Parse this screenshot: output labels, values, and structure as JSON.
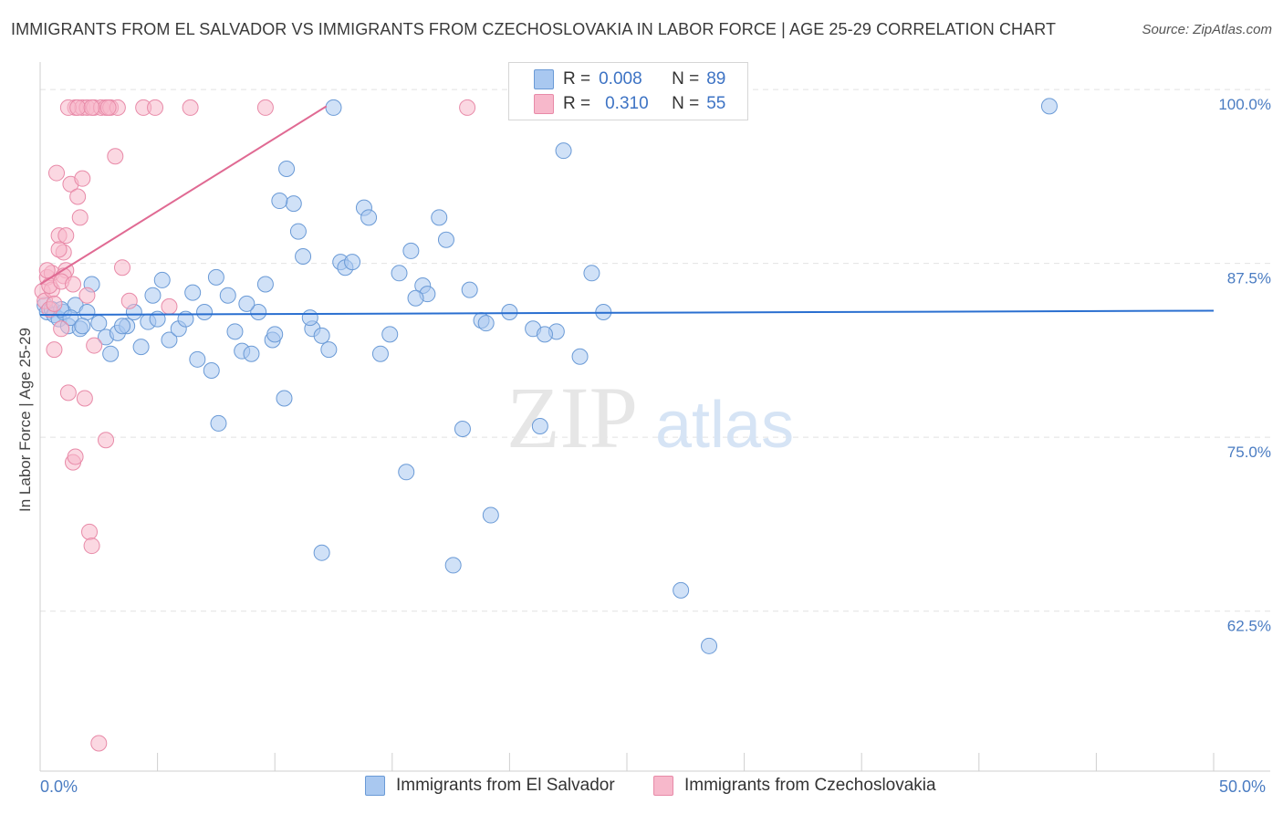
{
  "title": "IMMIGRANTS FROM EL SALVADOR VS IMMIGRANTS FROM CZECHOSLOVAKIA IN LABOR FORCE | AGE 25-29 CORRELATION CHART",
  "source": "Source: ZipAtlas.com",
  "watermark": {
    "zip": "ZIP",
    "atlas": "atlas"
  },
  "colors": {
    "blue_fill": "#a9c8f0",
    "blue_stroke": "#6a9ad6",
    "blue_line": "#2a6fd0",
    "pink_fill": "#f7b8cb",
    "pink_stroke": "#e88aa8",
    "pink_line": "#e06a93",
    "grid": "#e2e2e2",
    "axis_text": "#4a7cc2"
  },
  "legend": {
    "r_label": "R =",
    "n_label": "N =",
    "blue": {
      "r": "0.008",
      "n": "89"
    },
    "pink": {
      "r": "0.310",
      "n": "55"
    }
  },
  "bottom_legend": {
    "blue": "Immigrants from El Salvador",
    "pink": "Immigrants from Czechoslovakia"
  },
  "x_labels": {
    "min": "0.0%",
    "max": "50.0%"
  },
  "chart_data": {
    "type": "scatter",
    "title": "IMMIGRANTS FROM EL SALVADOR VS IMMIGRANTS FROM CZECHOSLOVAKIA IN LABOR FORCE | AGE 25-29 CORRELATION CHART",
    "xlabel": "",
    "ylabel": "In Labor Force | Age 25-29",
    "xlim": [
      0,
      50
    ],
    "ylim": [
      51,
      102.5
    ],
    "y_ticks": [
      {
        "value": 62.5,
        "label": "62.5%"
      },
      {
        "value": 75.0,
        "label": "75.0%"
      },
      {
        "value": 87.5,
        "label": "87.5%"
      },
      {
        "value": 100.0,
        "label": "100.0%"
      }
    ],
    "x_ticks": [
      0,
      5,
      10,
      15,
      20,
      25,
      30,
      35,
      40,
      45,
      50
    ],
    "series": [
      {
        "name": "Immigrants from El Salvador",
        "color": "blue",
        "r": 0.008,
        "n": 89,
        "trend": {
          "x": [
            0,
            50
          ],
          "y": [
            83.8,
            84.1
          ]
        },
        "points": [
          [
            0.2,
            84.5
          ],
          [
            0.3,
            84.0
          ],
          [
            0.5,
            84.2
          ],
          [
            0.6,
            83.8
          ],
          [
            0.8,
            83.5
          ],
          [
            1.0,
            84.0
          ],
          [
            1.2,
            83.0
          ],
          [
            1.5,
            84.5
          ],
          [
            1.7,
            82.8
          ],
          [
            2.0,
            84.0
          ],
          [
            2.5,
            83.2
          ],
          [
            2.8,
            82.2
          ],
          [
            3.0,
            81.0
          ],
          [
            3.3,
            82.5
          ],
          [
            3.7,
            83.0
          ],
          [
            4.0,
            84.0
          ],
          [
            4.3,
            81.5
          ],
          [
            4.6,
            83.3
          ],
          [
            5.0,
            83.5
          ],
          [
            5.5,
            82.0
          ],
          [
            5.9,
            82.8
          ],
          [
            6.2,
            83.5
          ],
          [
            6.7,
            80.6
          ],
          [
            7.0,
            84.0
          ],
          [
            7.3,
            79.8
          ],
          [
            7.6,
            76.0
          ],
          [
            8.0,
            85.2
          ],
          [
            8.3,
            82.6
          ],
          [
            8.6,
            81.2
          ],
          [
            9.0,
            81.0
          ],
          [
            9.3,
            84.0
          ],
          [
            9.6,
            86.0
          ],
          [
            9.9,
            82.0
          ],
          [
            10.4,
            77.8
          ],
          [
            10.5,
            94.3
          ],
          [
            10.8,
            91.8
          ],
          [
            11.0,
            89.8
          ],
          [
            11.2,
            88.0
          ],
          [
            11.6,
            82.8
          ],
          [
            12.0,
            82.3
          ],
          [
            12.3,
            81.3
          ],
          [
            12.8,
            87.6
          ],
          [
            13.0,
            87.2
          ],
          [
            13.3,
            87.6
          ],
          [
            13.8,
            91.5
          ],
          [
            14.0,
            90.8
          ],
          [
            14.5,
            81.0
          ],
          [
            14.9,
            82.4
          ],
          [
            15.3,
            86.8
          ],
          [
            15.6,
            72.5
          ],
          [
            15.8,
            88.4
          ],
          [
            16.3,
            85.9
          ],
          [
            16.5,
            85.3
          ],
          [
            17.0,
            90.8
          ],
          [
            17.3,
            89.2
          ],
          [
            17.6,
            65.8
          ],
          [
            18.0,
            75.6
          ],
          [
            18.3,
            85.6
          ],
          [
            18.8,
            83.4
          ],
          [
            19.2,
            69.4
          ],
          [
            19.0,
            83.2
          ],
          [
            21.0,
            82.8
          ],
          [
            21.3,
            75.8
          ],
          [
            22.0,
            82.6
          ],
          [
            22.3,
            95.6
          ],
          [
            23.0,
            80.8
          ],
          [
            23.5,
            86.8
          ],
          [
            24.0,
            84.0
          ],
          [
            27.3,
            64.0
          ],
          [
            28.5,
            60.0
          ],
          [
            12.0,
            66.7
          ],
          [
            0.9,
            84.2
          ],
          [
            1.3,
            83.6
          ],
          [
            1.8,
            83.0
          ],
          [
            2.2,
            86.0
          ],
          [
            3.5,
            83.0
          ],
          [
            4.8,
            85.2
          ],
          [
            5.2,
            86.3
          ],
          [
            6.5,
            85.4
          ],
          [
            7.5,
            86.5
          ],
          [
            8.8,
            84.6
          ],
          [
            10.2,
            92.0
          ],
          [
            10.0,
            82.4
          ],
          [
            11.5,
            83.6
          ],
          [
            12.5,
            98.7
          ],
          [
            16.0,
            85.0
          ],
          [
            20.0,
            84.0
          ],
          [
            21.5,
            82.4
          ],
          [
            43.0,
            98.8
          ]
        ]
      },
      {
        "name": "Immigrants from Czechoslovakia",
        "color": "pink",
        "r": 0.31,
        "n": 55,
        "trend": {
          "x": [
            0,
            12.2
          ],
          "y": [
            86.0,
            98.8
          ]
        },
        "points": [
          [
            0.1,
            85.5
          ],
          [
            0.2,
            84.8
          ],
          [
            0.3,
            86.5
          ],
          [
            0.4,
            84.2
          ],
          [
            0.5,
            86.8
          ],
          [
            0.6,
            81.3
          ],
          [
            0.7,
            94.0
          ],
          [
            0.8,
            89.5
          ],
          [
            0.9,
            82.8
          ],
          [
            1.0,
            88.3
          ],
          [
            1.1,
            87.0
          ],
          [
            1.2,
            78.2
          ],
          [
            1.3,
            93.2
          ],
          [
            1.4,
            73.2
          ],
          [
            1.5,
            73.6
          ],
          [
            1.6,
            92.3
          ],
          [
            1.7,
            90.8
          ],
          [
            1.8,
            93.6
          ],
          [
            1.9,
            77.8
          ],
          [
            2.0,
            85.2
          ],
          [
            2.1,
            68.2
          ],
          [
            2.2,
            67.2
          ],
          [
            2.3,
            81.6
          ],
          [
            2.5,
            53.0
          ],
          [
            2.8,
            74.8
          ],
          [
            3.2,
            95.2
          ],
          [
            3.5,
            87.2
          ],
          [
            3.8,
            84.8
          ],
          [
            5.5,
            84.4
          ],
          [
            1.1,
            89.5
          ],
          [
            0.8,
            88.5
          ],
          [
            0.5,
            85.6
          ],
          [
            0.3,
            87.0
          ],
          [
            0.6,
            84.6
          ],
          [
            1.0,
            86.6
          ],
          [
            1.5,
            98.7
          ],
          [
            1.8,
            98.7
          ],
          [
            2.0,
            98.7
          ],
          [
            2.3,
            98.7
          ],
          [
            2.6,
            98.7
          ],
          [
            2.8,
            98.7
          ],
          [
            3.0,
            98.7
          ],
          [
            3.3,
            98.7
          ],
          [
            1.2,
            98.7
          ],
          [
            1.6,
            98.7
          ],
          [
            2.2,
            98.7
          ],
          [
            2.9,
            98.7
          ],
          [
            4.4,
            98.7
          ],
          [
            4.9,
            98.7
          ],
          [
            6.4,
            98.7
          ],
          [
            9.6,
            98.7
          ],
          [
            18.2,
            98.7
          ],
          [
            0.4,
            85.9
          ],
          [
            0.9,
            86.2
          ],
          [
            1.4,
            86.0
          ]
        ]
      }
    ]
  }
}
